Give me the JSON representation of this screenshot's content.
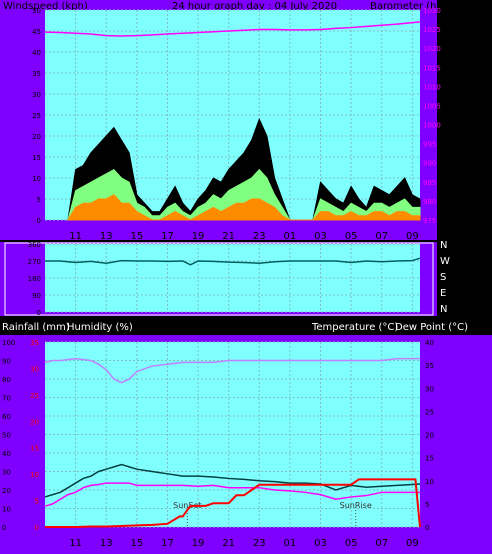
{
  "header": {
    "wind_label": "Windspeed (kph)",
    "title": "24 hour graph day : 04 July 2020",
    "baro_label": "Barometer (hpa)"
  },
  "mid_header": {
    "rain_label": "Rainfall (mm)",
    "humidity_label": "Humidity (%)",
    "temp_label": "Temperature (°C)",
    "dew_label": "Dew Point (°C)"
  },
  "colors": {
    "frame": "#8000ff",
    "plot_bg": "#80ffff",
    "grid": "#7fbfbf",
    "gust": "#000000",
    "wind_avg": "#80ff80",
    "wind_low": "#ff8c00",
    "baro": "#ff00ff",
    "dir": "#006060",
    "humidity": "#bf80ff",
    "temperature": "#004040",
    "dewpoint": "#ff00ff",
    "rain": "#ff0000"
  },
  "chart_data": [
    {
      "type": "area",
      "panel": "wind",
      "x_tick_labels": [
        "11",
        "13",
        "15",
        "17",
        "19",
        "21",
        "23",
        "01",
        "03",
        "05",
        "07",
        "09"
      ],
      "left_axis": {
        "label": "Windspeed (kph)",
        "ylim": [
          0,
          50
        ],
        "ticks": [
          "0",
          "5",
          "10",
          "15",
          "20",
          "25",
          "30",
          "35",
          "40",
          "45",
          "50"
        ]
      },
      "right_axis": {
        "label": "Barometer (hpa)",
        "ylim": [
          975,
          1030
        ],
        "ticks": [
          "975",
          "980",
          "985",
          "990",
          "995",
          "1000",
          "1005",
          "1010",
          "1015",
          "1020",
          "1025",
          "1030"
        ]
      },
      "series": [
        {
          "name": "gust",
          "hours": [
            10.5,
            11,
            11.5,
            12,
            12.5,
            13,
            13.5,
            14,
            14.5,
            15,
            15.5,
            16,
            16.5,
            17,
            17.5,
            18,
            18.5,
            19,
            19.5,
            20,
            20.5,
            21,
            21.5,
            22,
            22.5,
            23,
            23.5,
            24,
            24.5,
            25,
            25.5,
            26,
            26.5,
            27,
            27.5,
            28,
            28.5,
            29,
            29.5,
            30,
            30.5,
            31,
            31.5,
            32,
            32.5,
            33,
            33.5
          ],
          "values": [
            0,
            12,
            13,
            16,
            18,
            20,
            22,
            19,
            16,
            6,
            4,
            2,
            2,
            5,
            8,
            4,
            2,
            5,
            7,
            10,
            9,
            12,
            14,
            16,
            19,
            24,
            20,
            10,
            5,
            0,
            0,
            0,
            0,
            9,
            7,
            5,
            4,
            8,
            5,
            3,
            8,
            7,
            6,
            8,
            10,
            6,
            5
          ]
        },
        {
          "name": "average",
          "hours": [
            10.5,
            11,
            11.5,
            12,
            12.5,
            13,
            13.5,
            14,
            14.5,
            15,
            15.5,
            16,
            16.5,
            17,
            17.5,
            18,
            18.5,
            19,
            19.5,
            20,
            20.5,
            21,
            21.5,
            22,
            22.5,
            23,
            23.5,
            24,
            24.5,
            25,
            25.5,
            26,
            26.5,
            27,
            27.5,
            28,
            28.5,
            29,
            29.5,
            30,
            30.5,
            31,
            31.5,
            32,
            32.5,
            33,
            33.5
          ],
          "values": [
            0,
            7,
            8,
            9,
            10,
            11,
            12,
            10,
            9,
            4,
            3,
            1,
            1,
            3,
            4,
            2,
            1,
            3,
            4,
            6,
            5,
            7,
            8,
            9,
            10,
            12,
            10,
            6,
            3,
            0,
            0,
            0,
            0,
            5,
            4,
            3,
            2,
            4,
            3,
            2,
            4,
            4,
            3,
            4,
            5,
            3,
            3
          ]
        },
        {
          "name": "low",
          "hours": [
            10.5,
            11,
            11.5,
            12,
            12.5,
            13,
            13.5,
            14,
            14.5,
            15,
            15.5,
            16,
            16.5,
            17,
            17.5,
            18,
            18.5,
            19,
            19.5,
            20,
            20.5,
            21,
            21.5,
            22,
            22.5,
            23,
            23.5,
            24,
            24.5,
            25,
            25.5,
            26,
            26.5,
            27,
            27.5,
            28,
            28.5,
            29,
            29.5,
            30,
            30.5,
            31,
            31.5,
            32,
            32.5,
            33,
            33.5
          ],
          "values": [
            0,
            3,
            4,
            4,
            5,
            5,
            6,
            4,
            4,
            2,
            1,
            0,
            0,
            1,
            2,
            1,
            0,
            1,
            2,
            3,
            2,
            3,
            4,
            4,
            5,
            5,
            4,
            3,
            1,
            0,
            0,
            0,
            0,
            2,
            2,
            1,
            1,
            2,
            1,
            1,
            2,
            2,
            1,
            2,
            2,
            1,
            1
          ]
        },
        {
          "name": "barometer",
          "hours": [
            9,
            10,
            11,
            12,
            13,
            14,
            15,
            16,
            17,
            18,
            19,
            20,
            21,
            22,
            23,
            24,
            25,
            26,
            27,
            28,
            29,
            30,
            31,
            32,
            33,
            33.5
          ],
          "values": [
            1024.2,
            1024.1,
            1023.9,
            1023.7,
            1023.3,
            1023.2,
            1023.3,
            1023.5,
            1023.7,
            1023.9,
            1024.1,
            1024.3,
            1024.5,
            1024.7,
            1024.9,
            1024.9,
            1024.8,
            1024.8,
            1024.9,
            1025.2,
            1025.4,
            1025.7,
            1026.0,
            1026.3,
            1026.7,
            1026.9
          ]
        }
      ]
    },
    {
      "type": "line",
      "panel": "direction",
      "y_categories": [
        "N",
        "W",
        "S",
        "E",
        "N"
      ],
      "series": [
        {
          "name": "direction",
          "hours": [
            9,
            10,
            11,
            12,
            13,
            14,
            15,
            16,
            17,
            18,
            18.5,
            19,
            20,
            21,
            22,
            23,
            24,
            25,
            26,
            27,
            28,
            29,
            30,
            31,
            32,
            33,
            33.5
          ],
          "values": [
            270,
            270,
            262,
            268,
            258,
            272,
            270,
            270,
            268,
            270,
            250,
            270,
            268,
            264,
            262,
            258,
            266,
            270,
            270,
            270,
            270,
            262,
            270,
            266,
            270,
            272,
            285
          ]
        }
      ]
    },
    {
      "type": "line",
      "panel": "temperature",
      "x_tick_labels": [
        "11",
        "13",
        "15",
        "17",
        "19",
        "21",
        "23",
        "01",
        "03",
        "05",
        "07",
        "09"
      ],
      "left_axis": {
        "label": "Humidity (%)",
        "ylim": [
          0,
          100
        ],
        "ticks": [
          "0",
          "10",
          "20",
          "30",
          "40",
          "50",
          "60",
          "70",
          "80",
          "90",
          "100"
        ]
      },
      "rain_axis": {
        "label": "Rainfall (mm)",
        "ylim": [
          0,
          35
        ],
        "ticks": [
          "0",
          "5",
          "10",
          "15",
          "20",
          "25",
          "30",
          "35"
        ]
      },
      "right_axis": {
        "label": "Temperature (°C)",
        "ylim": [
          0,
          40
        ],
        "ticks": [
          "0",
          "5",
          "10",
          "15",
          "20",
          "25",
          "30",
          "35",
          "40"
        ]
      },
      "annotations": [
        {
          "text": "SunSet",
          "hour": 18.3
        },
        {
          "text": "SunRise",
          "hour": 29.3
        }
      ],
      "series": [
        {
          "name": "humidity",
          "hours": [
            9,
            9.5,
            10,
            11,
            12,
            12.5,
            13,
            13.5,
            14,
            14.5,
            15,
            16,
            17,
            18,
            19,
            20,
            21,
            22,
            23,
            24,
            25,
            26,
            27,
            28,
            29,
            30,
            31,
            32,
            33,
            33.5
          ],
          "values": [
            89,
            90,
            90,
            91,
            90,
            88,
            85,
            80,
            78,
            80,
            84,
            87,
            88,
            89,
            89,
            89,
            90,
            90,
            90,
            90,
            90,
            90,
            90,
            90,
            90,
            90,
            90,
            91,
            91,
            91
          ]
        },
        {
          "name": "temperature",
          "hours": [
            9,
            9.5,
            10,
            10.5,
            11,
            11.5,
            12,
            12.5,
            13,
            13.5,
            14,
            14.5,
            15,
            16,
            17,
            18,
            19,
            20,
            21,
            22,
            23,
            24,
            25,
            26,
            27,
            28,
            29,
            30,
            31,
            32,
            33,
            33.5
          ],
          "values": [
            6.5,
            7,
            7.5,
            8.5,
            9.5,
            10.5,
            11,
            12,
            12.5,
            13,
            13.5,
            13,
            12.5,
            12,
            11.5,
            11,
            11,
            10.8,
            10.5,
            10.3,
            10,
            9.8,
            9.5,
            9.5,
            9.3,
            8,
            9,
            8.6,
            8.8,
            9,
            9.2,
            9.3
          ]
        },
        {
          "name": "dewpoint",
          "hours": [
            9,
            9.5,
            10,
            10.5,
            11,
            11.5,
            12,
            12.5,
            13,
            13.5,
            14,
            14.5,
            15,
            16,
            17,
            18,
            19,
            20,
            21,
            22,
            23,
            24,
            25,
            26,
            27,
            28,
            29,
            30,
            31,
            32,
            33,
            33.5
          ],
          "values": [
            4.5,
            5,
            6,
            7,
            7.5,
            8.5,
            9,
            9.2,
            9.5,
            9.5,
            9.5,
            9.5,
            9,
            9,
            9,
            9,
            8.8,
            9,
            8.5,
            8.5,
            8.5,
            8,
            7.8,
            7.5,
            7,
            6,
            6.5,
            6.8,
            7.5,
            7.5,
            7.5,
            7.5
          ]
        },
        {
          "name": "rainfall",
          "hours": [
            9,
            10,
            11,
            12,
            13,
            14,
            15,
            16,
            17,
            17.8,
            18,
            18.5,
            19,
            19.5,
            20,
            21,
            21.5,
            22,
            22.5,
            23,
            23.5,
            24,
            25,
            26,
            27,
            27.5,
            28,
            29,
            29.5,
            30,
            31,
            32,
            32.5,
            33,
            33.2,
            33.5
          ],
          "values": [
            0,
            0,
            0,
            0.1,
            0.1,
            0.2,
            0.3,
            0.4,
            0.6,
            2,
            2,
            4,
            4,
            4,
            4.5,
            4.5,
            6,
            6,
            7,
            8,
            8,
            8,
            8,
            8,
            8,
            8,
            8,
            8,
            9,
            9,
            9,
            9,
            9,
            9,
            9,
            0
          ]
        }
      ]
    }
  ]
}
